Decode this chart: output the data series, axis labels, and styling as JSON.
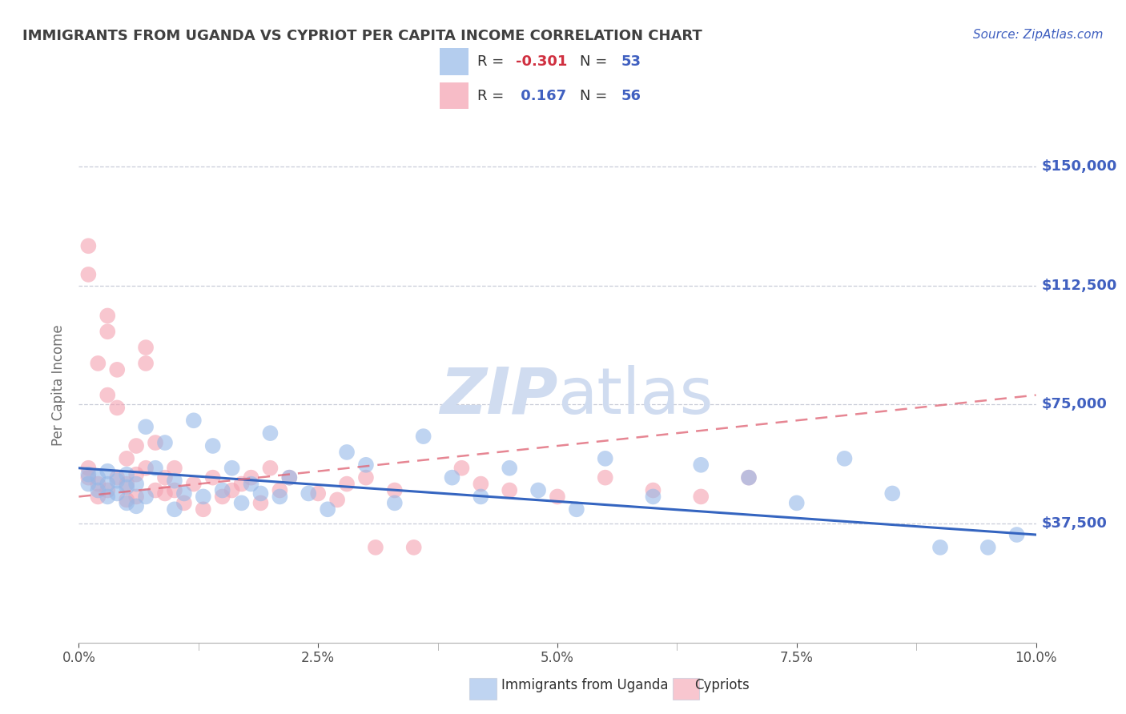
{
  "title": "IMMIGRANTS FROM UGANDA VS CYPRIOT PER CAPITA INCOME CORRELATION CHART",
  "source_text": "Source: ZipAtlas.com",
  "ylabel": "Per Capita Income",
  "xlim": [
    0.0,
    0.1
  ],
  "ylim": [
    0,
    162000
  ],
  "yticks": [
    0,
    37500,
    75000,
    112500,
    150000
  ],
  "ytick_labels": [
    "",
    "$37,500",
    "$75,000",
    "$112,500",
    "$150,000"
  ],
  "xtick_labels": [
    "0.0%",
    "",
    "2.5%",
    "",
    "5.0%",
    "",
    "7.5%",
    "",
    "10.0%"
  ],
  "xticks": [
    0.0,
    0.0125,
    0.025,
    0.0375,
    0.05,
    0.0625,
    0.075,
    0.0875,
    0.1
  ],
  "xtick_major": [
    0.0,
    0.025,
    0.05,
    0.075,
    0.1
  ],
  "xtick_major_labels": [
    "0.0%",
    "2.5%",
    "5.0%",
    "7.5%",
    "10.0%"
  ],
  "blue_label": "Immigrants from Uganda",
  "pink_label": "Cypriots",
  "blue_R": -0.301,
  "blue_N": 53,
  "pink_R": 0.167,
  "pink_N": 56,
  "blue_color": "#95B8E8",
  "pink_color": "#F4A0B0",
  "blue_trend_color": "#3565C0",
  "pink_trend_color": "#E06878",
  "watermark_color": "#D0DCF0",
  "title_color": "#404040",
  "axis_label_color": "#707070",
  "ytick_color": "#4060C0",
  "source_color": "#4060C0",
  "grid_color": "#C8CCD8",
  "legend_text_color": "#4060C0",
  "legend_R_color": "#D04050",
  "blue_scatter_x": [
    0.001,
    0.001,
    0.002,
    0.002,
    0.003,
    0.003,
    0.003,
    0.004,
    0.004,
    0.005,
    0.005,
    0.005,
    0.006,
    0.006,
    0.007,
    0.007,
    0.008,
    0.009,
    0.01,
    0.01,
    0.011,
    0.012,
    0.013,
    0.014,
    0.015,
    0.016,
    0.017,
    0.018,
    0.019,
    0.02,
    0.021,
    0.022,
    0.024,
    0.026,
    0.028,
    0.03,
    0.033,
    0.036,
    0.039,
    0.042,
    0.045,
    0.048,
    0.052,
    0.055,
    0.06,
    0.065,
    0.07,
    0.075,
    0.08,
    0.085,
    0.09,
    0.095,
    0.098
  ],
  "blue_scatter_y": [
    53000,
    50000,
    48000,
    52000,
    46000,
    50000,
    54000,
    47000,
    51000,
    44000,
    49000,
    53000,
    43000,
    50000,
    68000,
    46000,
    55000,
    63000,
    42000,
    51000,
    47000,
    70000,
    46000,
    62000,
    48000,
    55000,
    44000,
    50000,
    47000,
    66000,
    46000,
    52000,
    47000,
    42000,
    60000,
    56000,
    44000,
    65000,
    52000,
    46000,
    55000,
    48000,
    42000,
    58000,
    46000,
    56000,
    52000,
    44000,
    58000,
    47000,
    30000,
    30000,
    34000
  ],
  "pink_scatter_x": [
    0.001,
    0.001,
    0.001,
    0.001,
    0.002,
    0.002,
    0.002,
    0.003,
    0.003,
    0.003,
    0.003,
    0.004,
    0.004,
    0.004,
    0.005,
    0.005,
    0.005,
    0.006,
    0.006,
    0.006,
    0.007,
    0.007,
    0.007,
    0.008,
    0.008,
    0.009,
    0.009,
    0.01,
    0.01,
    0.011,
    0.012,
    0.013,
    0.014,
    0.015,
    0.016,
    0.017,
    0.018,
    0.019,
    0.02,
    0.021,
    0.022,
    0.025,
    0.027,
    0.028,
    0.03,
    0.031,
    0.033,
    0.035,
    0.04,
    0.042,
    0.045,
    0.05,
    0.055,
    0.06,
    0.065,
    0.07
  ],
  "pink_scatter_y": [
    52000,
    116000,
    55000,
    125000,
    46000,
    50000,
    88000,
    103000,
    98000,
    78000,
    48000,
    52000,
    74000,
    86000,
    50000,
    45000,
    58000,
    53000,
    46000,
    62000,
    55000,
    93000,
    88000,
    48000,
    63000,
    52000,
    47000,
    48000,
    55000,
    44000,
    50000,
    42000,
    52000,
    46000,
    48000,
    50000,
    52000,
    44000,
    55000,
    48000,
    52000,
    47000,
    45000,
    50000,
    52000,
    30000,
    48000,
    30000,
    55000,
    50000,
    48000,
    46000,
    52000,
    48000,
    46000,
    52000
  ],
  "blue_trend_x": [
    0.0,
    0.1
  ],
  "blue_trend_y": [
    55000,
    34000
  ],
  "pink_trend_x": [
    0.0,
    0.1
  ],
  "pink_trend_y": [
    46000,
    78000
  ]
}
